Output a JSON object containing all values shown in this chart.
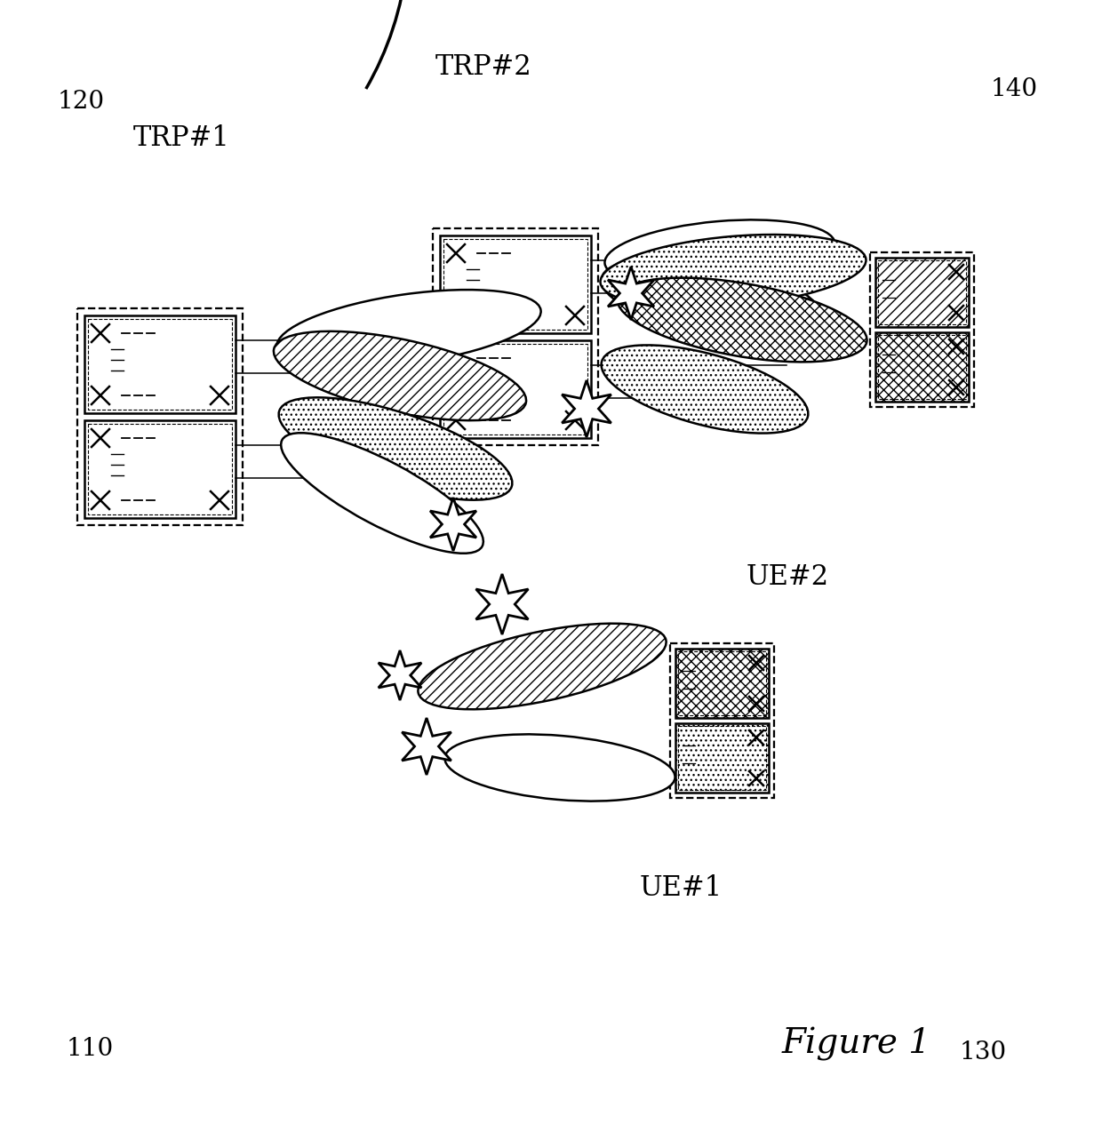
{
  "title": "Figure 1",
  "labels": {
    "TRP1": "TRP#1",
    "TRP2": "TRP#2",
    "UE1": "UE#1",
    "UE2": "UE#2",
    "ref110": "110",
    "ref120": "120",
    "ref130": "130",
    "ref140": "140"
  },
  "colors": {
    "background": "#ffffff",
    "outline": "#000000"
  },
  "figure_size": [
    12.4,
    12.74
  ],
  "dpi": 100
}
